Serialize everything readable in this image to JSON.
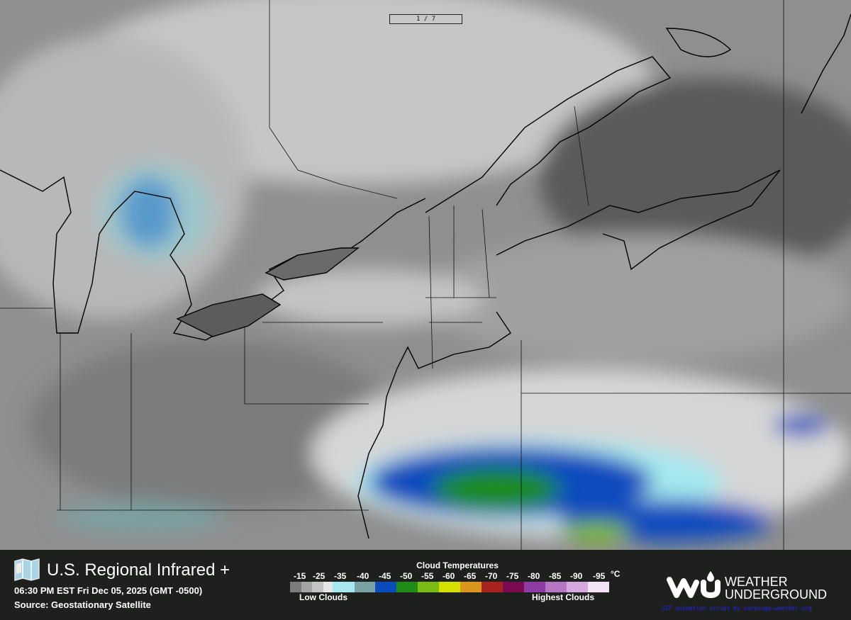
{
  "frame_counter": "1 / 7",
  "header": {
    "title": "U.S. Regional Infrared +",
    "timestamp": "06:30 PM EST Fri Dec 05, 2025 (GMT -0500)",
    "source": "Source: Geostationary Satellite"
  },
  "legend": {
    "title": "Cloud Temperatures",
    "unit": "°C",
    "labels": [
      "-15",
      "-25",
      "-35",
      "-40",
      "-45",
      "-50",
      "-55",
      "-60",
      "-65",
      "-70",
      "-75",
      "-80",
      "-85",
      "-90",
      "-95"
    ],
    "swatch_colors": [
      "#7b7d7d",
      "#a3a5a5",
      "#c3c3c3",
      "#e6e6e6",
      "#a6e8ee",
      "#7aa2a4",
      "#0a4cbe",
      "#1e8c16",
      "#7abc12",
      "#d4e000",
      "#d8961a",
      "#a82220",
      "#7c0a50",
      "#8c3ca4",
      "#b676c4",
      "#d6a8e0",
      "#f2e4f4"
    ],
    "low_label": "Low Clouds",
    "high_label": "Highest Clouds"
  },
  "brand": {
    "logo_text": "WU",
    "name_line1": "WEATHER",
    "name_line2": "UNDERGROUND",
    "credit": "GIF animation script by saratoga-weather.org"
  }
}
